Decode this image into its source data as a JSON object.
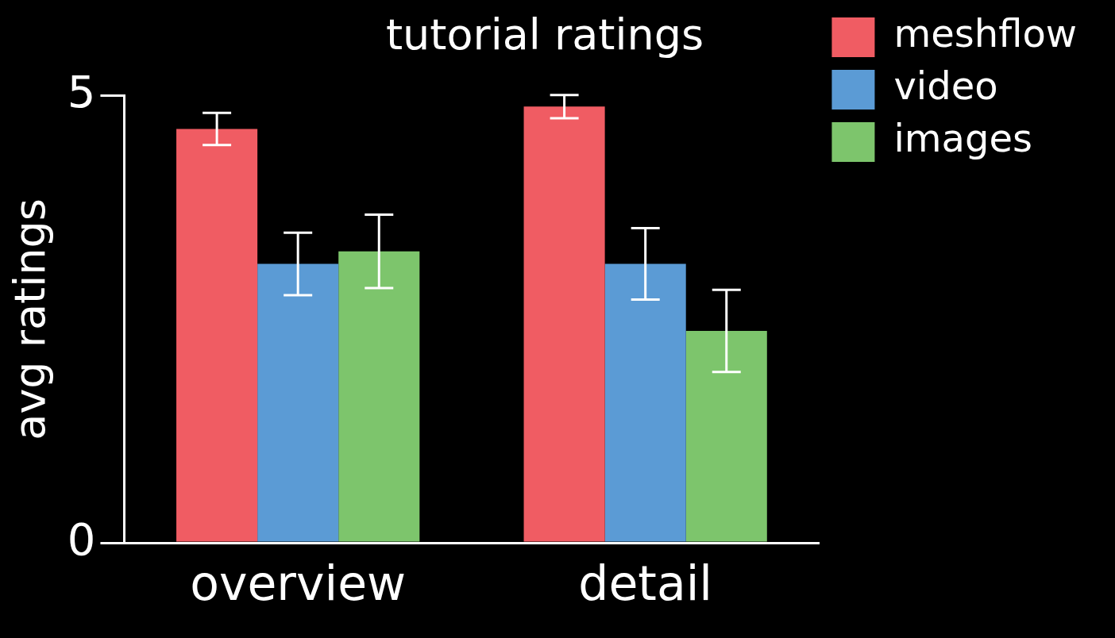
{
  "chart_data": {
    "type": "bar",
    "title": "tutorial ratings",
    "ylabel": "avg ratings",
    "categories": [
      "overview",
      "detail"
    ],
    "series": [
      {
        "name": "meshflow",
        "color": "#f05c63",
        "values": [
          4.63,
          4.88
        ],
        "errors": [
          0.18,
          0.13
        ]
      },
      {
        "name": "video",
        "color": "#5b9bd5",
        "values": [
          3.12,
          3.12
        ],
        "errors": [
          0.35,
          0.4
        ]
      },
      {
        "name": "images",
        "color": "#7dc56c",
        "values": [
          3.26,
          2.37
        ],
        "errors": [
          0.41,
          0.46
        ]
      }
    ],
    "ylim": [
      0,
      5
    ],
    "yticks": [
      0,
      5
    ],
    "grid": false,
    "legend": "top right"
  }
}
